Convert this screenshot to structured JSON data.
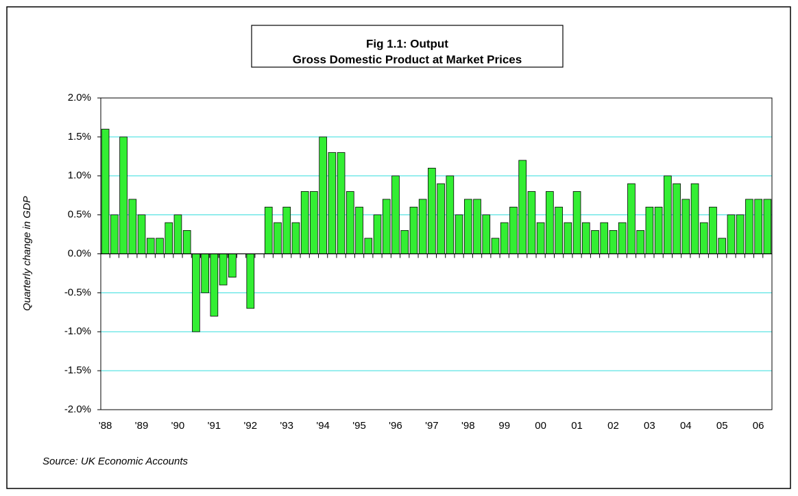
{
  "chart_data": {
    "type": "bar",
    "title": [
      "Fig 1.1: Output",
      "Gross Domestic Product at Market Prices"
    ],
    "y_label": "Quarterly change in GDP",
    "source": "Source: UK Economic Accounts",
    "color": "#33ee33",
    "grid": true,
    "grid_color": "#33dddd",
    "categories": [
      "'88",
      null,
      null,
      null,
      "'89",
      null,
      null,
      null,
      "'90",
      null,
      null,
      null,
      "'91",
      null,
      null,
      null,
      "'92",
      null,
      null,
      null,
      "'93",
      null,
      null,
      null,
      "'94",
      null,
      null,
      null,
      "'95",
      null,
      null,
      null,
      "'96",
      null,
      null,
      null,
      "'97",
      null,
      null,
      null,
      "'98",
      null,
      null,
      null,
      "99",
      null,
      null,
      null,
      "00",
      null,
      null,
      null,
      "01",
      null,
      null,
      null,
      "02",
      null,
      null,
      null,
      "03",
      null,
      null,
      null,
      "04",
      null,
      null,
      null,
      "05",
      null,
      null,
      null,
      "06",
      null
    ],
    "values": [
      1.6,
      0.5,
      1.5,
      0.7,
      0.5,
      0.2,
      0.2,
      0.4,
      0.5,
      0.3,
      -1.0,
      -0.5,
      -0.8,
      -0.4,
      -0.3,
      0,
      -0.7,
      0,
      0.6,
      0.4,
      0.6,
      0.4,
      0.8,
      0.8,
      1.5,
      1.3,
      1.3,
      0.8,
      0.6,
      0.2,
      0.5,
      0.7,
      1.0,
      0.3,
      0.6,
      0.7,
      1.1,
      0.9,
      1.0,
      0.5,
      0.7,
      0.7,
      0.5,
      0.2,
      0.4,
      0.6,
      1.2,
      0.8,
      0.4,
      0.8,
      0.6,
      0.4,
      0.8,
      0.4,
      0.3,
      0.4,
      0.3,
      0.4,
      0.9,
      0.3,
      0.6,
      0.6,
      1.0,
      0.9,
      0.7,
      0.9,
      0.4,
      0.6,
      0.2,
      0.5,
      0.5,
      0.7,
      0.7,
      0.7
    ],
    "ylim": [
      -2,
      2
    ],
    "yticks": [
      {
        "value": -2,
        "label": "-2.0%"
      },
      {
        "value": -1.5,
        "label": "-1.5%"
      },
      {
        "value": -1,
        "label": "-1.0%"
      },
      {
        "value": -0.5,
        "label": "-0.5%"
      },
      {
        "value": 0,
        "label": "0.0%"
      },
      {
        "value": 0.5,
        "label": "0.5%"
      },
      {
        "value": 1,
        "label": "1.0%"
      },
      {
        "value": 1.5,
        "label": "1.5%"
      },
      {
        "value": 2,
        "label": "2.0%"
      }
    ]
  }
}
